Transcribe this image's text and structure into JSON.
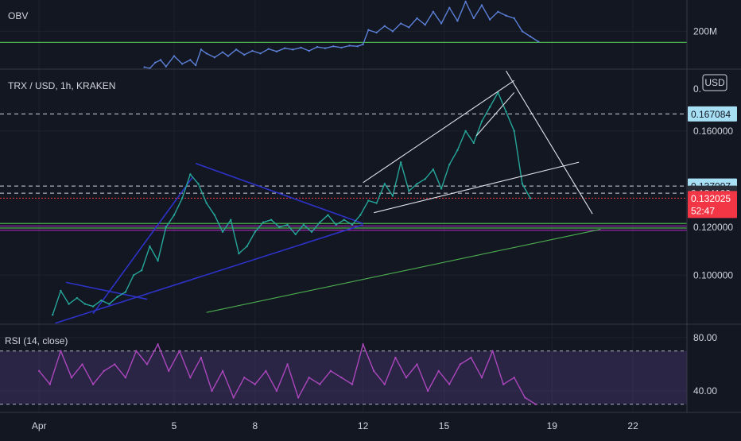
{
  "chart_data": [
    {
      "type": "line",
      "panel": "obv",
      "indicator_label": "OBV",
      "y_tick_labels": [
        "200M"
      ],
      "y_ticks": [
        200
      ],
      "ylim": [
        -90,
        440
      ],
      "series": [
        {
          "color": "#5b7fd6",
          "x": [
            3.9,
            4.1,
            4.3,
            4.5,
            4.7,
            5.0,
            5.3,
            5.6,
            5.8,
            6.0,
            6.2,
            6.5,
            6.8,
            7.0,
            7.3,
            7.6,
            7.9,
            8.2,
            8.5,
            8.8,
            9.1,
            9.4,
            9.7,
            10.0,
            10.3,
            10.6,
            10.9,
            11.2,
            11.5,
            11.8,
            12.0,
            12.2,
            12.5,
            12.8,
            13.1,
            13.4,
            13.7,
            14.0,
            14.3,
            14.6,
            14.9,
            15.2,
            15.5,
            15.8,
            16.1,
            16.4,
            16.7,
            17.0,
            17.3,
            17.6,
            17.9,
            18.2,
            18.5
          ],
          "y": [
            -75,
            -85,
            -40,
            -20,
            -70,
            10,
            -50,
            -20,
            -60,
            60,
            30,
            0,
            40,
            10,
            60,
            20,
            50,
            30,
            65,
            45,
            70,
            60,
            75,
            50,
            80,
            70,
            85,
            75,
            90,
            85,
            100,
            210,
            190,
            240,
            200,
            260,
            230,
            300,
            250,
            350,
            260,
            380,
            280,
            430,
            300,
            400,
            290,
            350,
            320,
            300,
            200,
            160,
            120
          ]
        }
      ],
      "annotations": [
        {
          "type": "hline",
          "y": 115,
          "color": "#4caf50"
        }
      ]
    },
    {
      "type": "line",
      "panel": "price",
      "title": "TRX / USD, 1h, KRAKEN",
      "currency_label": "USD",
      "y_tick_labels": [
        "0.160000",
        "0.120000",
        "0.100000"
      ],
      "y_ticks": [
        0.16,
        0.12,
        0.1
      ],
      "ylim": [
        0.0796,
        0.1854
      ],
      "top_partial_label": "0.",
      "price_tags": [
        {
          "value": 0.167084,
          "label": "0.167084",
          "bg": "#a7e0f5",
          "fg": "#131722"
        },
        {
          "value": 0.137097,
          "label": "0.137097",
          "bg": "#a7e0f5",
          "fg": "#131722"
        },
        {
          "value": 0.134109,
          "label": "0.134109",
          "bg": "#2a2e39",
          "fg": "#d1d4dc"
        },
        {
          "value": 0.132025,
          "label": "0.132025",
          "bg": "#f23645",
          "fg": "#ffffff"
        }
      ],
      "countdown": "52:47",
      "series": [
        {
          "color": "#26a69a",
          "x": [
            0.5,
            0.8,
            1.1,
            1.4,
            1.7,
            2.0,
            2.3,
            2.6,
            2.9,
            3.2,
            3.5,
            3.8,
            4.1,
            4.4,
            4.7,
            5.0,
            5.3,
            5.6,
            5.9,
            6.2,
            6.5,
            6.8,
            7.1,
            7.4,
            7.7,
            8.0,
            8.3,
            8.6,
            8.9,
            9.2,
            9.5,
            9.8,
            10.1,
            10.4,
            10.7,
            11.0,
            11.3,
            11.6,
            11.9,
            12.2,
            12.5,
            12.8,
            13.1,
            13.4,
            13.7,
            14.0,
            14.3,
            14.6,
            14.9,
            15.2,
            15.5,
            15.8,
            16.1,
            16.4,
            16.7,
            17.0,
            17.3,
            17.6,
            17.9,
            18.2
          ],
          "y": [
            0.0835,
            0.0935,
            0.088,
            0.0905,
            0.088,
            0.087,
            0.0895,
            0.088,
            0.091,
            0.093,
            0.1,
            0.102,
            0.112,
            0.106,
            0.12,
            0.125,
            0.132,
            0.142,
            0.138,
            0.13,
            0.125,
            0.118,
            0.123,
            0.109,
            0.112,
            0.118,
            0.122,
            0.123,
            0.12,
            0.121,
            0.117,
            0.121,
            0.118,
            0.122,
            0.125,
            0.121,
            0.123,
            0.121,
            0.125,
            0.131,
            0.13,
            0.138,
            0.133,
            0.147,
            0.135,
            0.138,
            0.14,
            0.144,
            0.136,
            0.146,
            0.152,
            0.16,
            0.155,
            0.164,
            0.17,
            0.176,
            0.168,
            0.16,
            0.138,
            0.132
          ]
        }
      ],
      "annotations": [
        {
          "type": "hline",
          "y": 0.167084,
          "style": "dashed",
          "color": "#d1d4dc"
        },
        {
          "type": "hline",
          "y": 0.137097,
          "style": "dashed",
          "color": "#d1d4dc"
        },
        {
          "type": "hline",
          "y": 0.134109,
          "style": "dashed",
          "color": "#d1d4dc"
        },
        {
          "type": "hline",
          "y": 0.132025,
          "style": "dotted",
          "color": "#f23645"
        },
        {
          "type": "hline",
          "y": 0.1215,
          "color": "#4caf50"
        },
        {
          "type": "hline",
          "y": 0.1205,
          "color": "#9c27b0"
        },
        {
          "type": "hline",
          "y": 0.1196,
          "color": "#4caf50"
        },
        {
          "type": "hline",
          "y": 0.1187,
          "color": "#9c27b0"
        },
        {
          "type": "segment",
          "x1": 6.2,
          "y1": 0.0845,
          "x2": 20.8,
          "y2": 0.1191,
          "color": "#4caf50"
        },
        {
          "type": "segment",
          "x1": 0.6,
          "y1": 0.08,
          "x2": 12.0,
          "y2": 0.121,
          "color": "#2d32c8"
        },
        {
          "type": "segment",
          "x1": 5.8,
          "y1": 0.1465,
          "x2": 12.0,
          "y2": 0.1215,
          "color": "#2d32c8"
        },
        {
          "type": "segment",
          "x1": 2.0,
          "y1": 0.084,
          "x2": 5.7,
          "y2": 0.141,
          "color": "#2d32c8"
        },
        {
          "type": "segment",
          "x1": 1.0,
          "y1": 0.097,
          "x2": 4.0,
          "y2": 0.09,
          "color": "#2d32c8"
        },
        {
          "type": "segment",
          "x1": 12.0,
          "y1": 0.1385,
          "x2": 17.6,
          "y2": 0.181,
          "color": "#e0e3eb"
        },
        {
          "type": "segment",
          "x1": 12.4,
          "y1": 0.126,
          "x2": 20.0,
          "y2": 0.147,
          "color": "#e0e3eb"
        },
        {
          "type": "segment",
          "x1": 17.3,
          "y1": 0.185,
          "x2": 20.5,
          "y2": 0.1255,
          "color": "#e0e3eb"
        },
        {
          "type": "segment",
          "x1": 16.2,
          "y1": 0.158,
          "x2": 17.6,
          "y2": 0.176,
          "color": "#e0e3eb"
        }
      ]
    },
    {
      "type": "line",
      "panel": "rsi",
      "indicator_label": "RSI (14, close)",
      "y_tick_labels": [
        "80.00",
        "40.00"
      ],
      "y_ticks": [
        80,
        40
      ],
      "ylim": [
        23.9,
        89.5
      ],
      "bands": [
        70,
        30
      ],
      "series": [
        {
          "color": "#ab47bc",
          "x": [
            0.0,
            0.4,
            0.8,
            1.2,
            1.6,
            2.0,
            2.4,
            2.8,
            3.2,
            3.6,
            4.0,
            4.4,
            4.8,
            5.2,
            5.6,
            6.0,
            6.4,
            6.8,
            7.2,
            7.6,
            8.0,
            8.4,
            8.8,
            9.2,
            9.6,
            10.0,
            10.4,
            10.8,
            11.2,
            11.6,
            12.0,
            12.4,
            12.8,
            13.2,
            13.6,
            14.0,
            14.4,
            14.8,
            15.2,
            15.6,
            16.0,
            16.4,
            16.8,
            17.2,
            17.6,
            18.0,
            18.4
          ],
          "y": [
            55,
            45,
            70,
            50,
            60,
            45,
            55,
            60,
            50,
            70,
            60,
            75,
            55,
            70,
            50,
            65,
            40,
            55,
            35,
            50,
            45,
            55,
            40,
            60,
            35,
            50,
            45,
            55,
            50,
            45,
            75,
            55,
            45,
            65,
            50,
            60,
            40,
            55,
            45,
            60,
            65,
            50,
            70,
            45,
            50,
            35,
            30
          ]
        }
      ]
    },
    {
      "type": "line",
      "panel": "time-axis",
      "x_tick_labels": [
        "Apr",
        "5",
        "8",
        "12",
        "15",
        "19",
        "22"
      ],
      "x_ticks": [
        0,
        5,
        8,
        12,
        15,
        19,
        22
      ],
      "xlim": [
        -1.45,
        24.0
      ]
    }
  ]
}
